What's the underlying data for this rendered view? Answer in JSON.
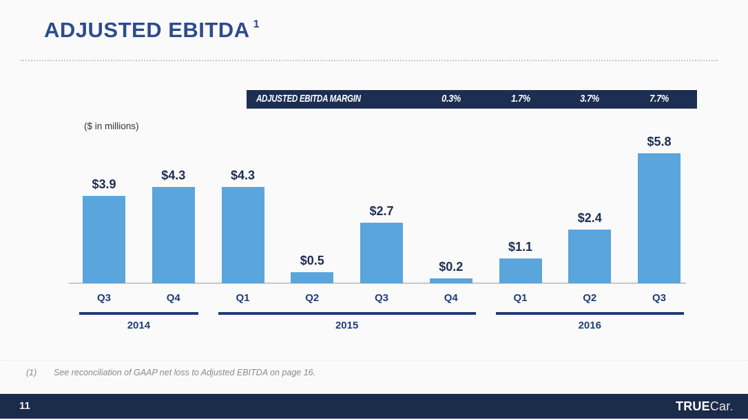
{
  "page": {
    "title": "ADJUSTED EBITDA",
    "title_superscript": "1",
    "units_label": "($ in millions)",
    "footnote_marker": "(1)",
    "footnote_text": "See reconciliation of GAAP net loss to Adjusted EBITDA on page 16.",
    "page_number": "11"
  },
  "margin_banner": {
    "label": "ADJUSTED EBITDA MARGIN",
    "values": [
      "0.3%",
      "1.7%",
      "3.7%",
      "7.7%"
    ]
  },
  "footer": {
    "logo_bold": "TRUE",
    "logo_light": "Car",
    "logo_dot": "."
  },
  "colors": {
    "bar_blue": "#5aa5dc",
    "navy_banner": "#1c2e52",
    "navy_footer": "#1b2b4a",
    "title_blue": "#2d4b8d",
    "label_navy": "#1c2d52",
    "background": "#fafafa"
  },
  "chart_data": {
    "type": "bar",
    "title": "ADJUSTED EBITDA",
    "ylabel": "($ in millions)",
    "categories": [
      "Q3",
      "Q4",
      "Q1",
      "Q2",
      "Q3",
      "Q4",
      "Q1",
      "Q2",
      "Q3"
    ],
    "values": [
      3.9,
      4.3,
      4.3,
      0.5,
      2.7,
      0.2,
      1.1,
      2.4,
      5.8
    ],
    "labels": [
      "$3.9",
      "$4.3",
      "$4.3",
      "$0.5",
      "$2.7",
      "$0.2",
      "$1.1",
      "$2.4",
      "$5.8"
    ],
    "year_groups": [
      {
        "year": "2014",
        "start": 0,
        "end": 1
      },
      {
        "year": "2015",
        "start": 2,
        "end": 5
      },
      {
        "year": "2016",
        "start": 6,
        "end": 8
      }
    ],
    "margin_row": {
      "label": "ADJUSTED EBITDA MARGIN",
      "values": [
        "0.3%",
        "1.7%",
        "3.7%",
        "7.7%"
      ],
      "aligned_to_last_n_bars": 4
    },
    "ylim": [
      0,
      6.2
    ],
    "grid": false,
    "legend": "none",
    "bar_color": "#5aa5dc"
  }
}
